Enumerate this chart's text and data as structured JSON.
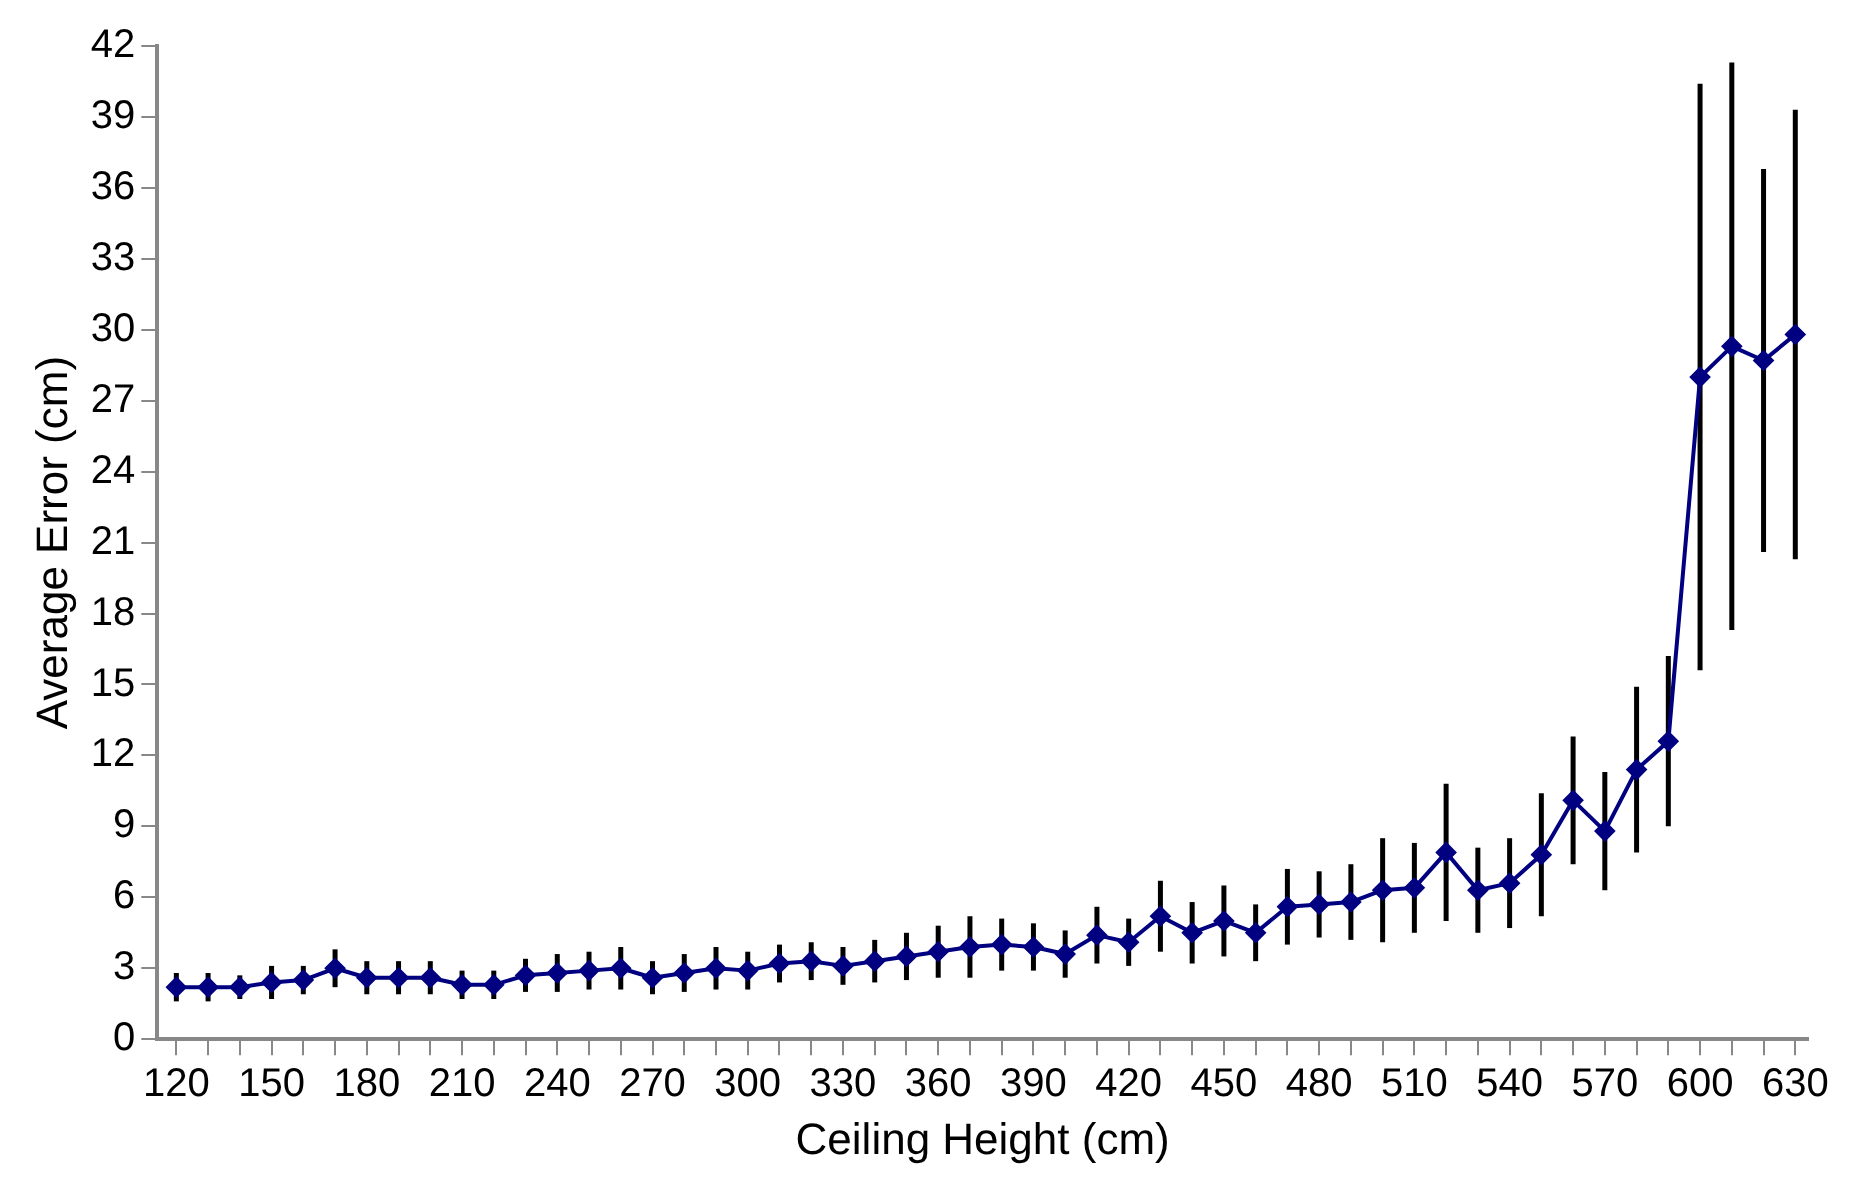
{
  "chart_data": {
    "type": "line",
    "xlabel": "Ceiling Height (cm)",
    "ylabel": "Average Error (cm)",
    "x": [
      120,
      130,
      140,
      150,
      160,
      170,
      180,
      190,
      200,
      210,
      220,
      230,
      240,
      250,
      260,
      270,
      280,
      290,
      300,
      310,
      320,
      330,
      340,
      350,
      360,
      370,
      380,
      390,
      400,
      410,
      420,
      430,
      440,
      450,
      460,
      470,
      480,
      490,
      500,
      510,
      520,
      530,
      540,
      550,
      560,
      570,
      580,
      590,
      600,
      610,
      620,
      630
    ],
    "series": [
      {
        "color": "#000080",
        "values": [
          2.2,
          2.2,
          2.2,
          2.4,
          2.5,
          3.0,
          2.6,
          2.6,
          2.6,
          2.3,
          2.3,
          2.7,
          2.8,
          2.9,
          3.0,
          2.6,
          2.8,
          3.0,
          2.9,
          3.2,
          3.3,
          3.1,
          3.3,
          3.5,
          3.7,
          3.9,
          4.0,
          3.9,
          3.6,
          4.4,
          4.1,
          5.2,
          4.5,
          5.0,
          4.5,
          5.6,
          5.7,
          5.8,
          6.3,
          6.4,
          7.9,
          6.3,
          6.6,
          7.8,
          10.1,
          8.8,
          11.4,
          12.6,
          28.0,
          29.3,
          28.7,
          29.8
        ],
        "errors": [
          0.6,
          0.6,
          0.5,
          0.7,
          0.6,
          0.8,
          0.7,
          0.7,
          0.7,
          0.6,
          0.6,
          0.7,
          0.8,
          0.8,
          0.9,
          0.7,
          0.8,
          0.9,
          0.8,
          0.8,
          0.8,
          0.8,
          0.9,
          1.0,
          1.1,
          1.3,
          1.1,
          1.0,
          1.0,
          1.2,
          1.0,
          1.5,
          1.3,
          1.5,
          1.2,
          1.6,
          1.4,
          1.6,
          2.2,
          1.9,
          2.9,
          1.8,
          1.9,
          2.6,
          2.7,
          2.5,
          3.5,
          3.6,
          12.4,
          12.0,
          8.1,
          9.5
        ]
      }
    ],
    "xlim": [
      114,
      634
    ],
    "xticks": [
      120,
      {
        "value": 130,
        "label": null
      },
      {
        "value": 140,
        "label": null
      },
      150,
      {
        "value": 160,
        "label": null
      },
      {
        "value": 170,
        "label": null
      },
      180,
      {
        "value": 190,
        "label": null
      },
      {
        "value": 200,
        "label": null
      },
      210,
      {
        "value": 220,
        "label": null
      },
      {
        "value": 230,
        "label": null
      },
      240,
      {
        "value": 250,
        "label": null
      },
      {
        "value": 260,
        "label": null
      },
      270,
      {
        "value": 280,
        "label": null
      },
      {
        "value": 290,
        "label": null
      },
      300,
      {
        "value": 310,
        "label": null
      },
      {
        "value": 320,
        "label": null
      },
      330,
      {
        "value": 340,
        "label": null
      },
      {
        "value": 350,
        "label": null
      },
      360,
      {
        "value": 370,
        "label": null
      },
      {
        "value": 380,
        "label": null
      },
      390,
      {
        "value": 400,
        "label": null
      },
      {
        "value": 410,
        "label": null
      },
      420,
      {
        "value": 430,
        "label": null
      },
      {
        "value": 440,
        "label": null
      },
      450,
      {
        "value": 460,
        "label": null
      },
      {
        "value": 470,
        "label": null
      },
      480,
      {
        "value": 490,
        "label": null
      },
      {
        "value": 500,
        "label": null
      },
      510,
      {
        "value": 520,
        "label": null
      },
      {
        "value": 530,
        "label": null
      },
      540,
      {
        "value": 550,
        "label": null
      },
      {
        "value": 560,
        "label": null
      },
      570,
      {
        "value": 580,
        "label": null
      },
      {
        "value": 590,
        "label": null
      },
      600,
      {
        "value": 610,
        "label": null
      },
      {
        "value": 620,
        "label": null
      },
      630
    ],
    "ylim": [
      0,
      42
    ],
    "yticks": [
      0,
      3,
      6,
      9,
      12,
      15,
      18,
      21,
      24,
      27,
      30,
      33,
      36,
      39,
      42
    ],
    "grid": false,
    "legend": false,
    "marker": "diamond",
    "line_style": "solid"
  }
}
